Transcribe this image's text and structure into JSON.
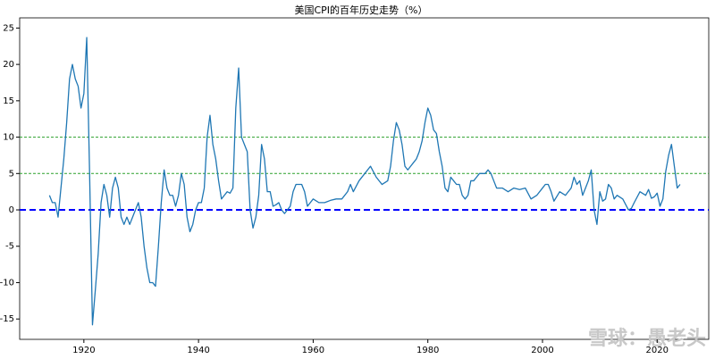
{
  "chart_data": {
    "type": "line",
    "title": "美国CPI的百年历史走势（%）",
    "watermark": "雪球：愚老头",
    "x": [
      1914.0,
      1914.5,
      1915.0,
      1915.5,
      1916.0,
      1916.5,
      1917.0,
      1917.5,
      1918.0,
      1918.5,
      1919.0,
      1919.5,
      1920.0,
      1920.5,
      1921.0,
      1921.5,
      1922.0,
      1922.5,
      1923.0,
      1923.5,
      1924.0,
      1924.5,
      1925.0,
      1925.5,
      1926.0,
      1926.5,
      1927.0,
      1927.5,
      1928.0,
      1928.5,
      1929.0,
      1929.5,
      1930.0,
      1930.5,
      1931.0,
      1931.5,
      1932.0,
      1932.5,
      1933.0,
      1933.5,
      1934.0,
      1934.5,
      1935.0,
      1935.5,
      1936.0,
      1936.5,
      1937.0,
      1937.5,
      1938.0,
      1938.5,
      1939.0,
      1939.5,
      1940.0,
      1940.5,
      1941.0,
      1941.5,
      1942.0,
      1942.5,
      1943.0,
      1943.5,
      1944.0,
      1944.5,
      1945.0,
      1945.5,
      1946.0,
      1946.5,
      1947.0,
      1947.5,
      1948.0,
      1948.5,
      1949.0,
      1949.5,
      1950.0,
      1950.5,
      1951.0,
      1951.5,
      1952.0,
      1952.5,
      1953.0,
      1953.5,
      1954.0,
      1954.5,
      1955.0,
      1955.5,
      1956.0,
      1956.5,
      1957.0,
      1957.5,
      1958.0,
      1958.5,
      1959.0,
      1959.5,
      1960.0,
      1961.0,
      1962.0,
      1963.0,
      1964.0,
      1965.0,
      1966.0,
      1966.5,
      1967.0,
      1968.0,
      1969.0,
      1970.0,
      1971.0,
      1972.0,
      1973.0,
      1973.5,
      1974.0,
      1974.5,
      1975.0,
      1975.5,
      1976.0,
      1976.5,
      1977.0,
      1977.5,
      1978.0,
      1978.5,
      1979.0,
      1979.5,
      1980.0,
      1980.5,
      1981.0,
      1981.5,
      1982.0,
      1982.5,
      1983.0,
      1983.5,
      1984.0,
      1984.5,
      1985.0,
      1985.5,
      1986.0,
      1986.5,
      1987.0,
      1987.5,
      1988.0,
      1988.5,
      1989.0,
      1989.5,
      1990.0,
      1990.5,
      1991.0,
      1991.5,
      1992.0,
      1993.0,
      1994.0,
      1995.0,
      1996.0,
      1997.0,
      1998.0,
      1999.0,
      2000.0,
      2000.5,
      2001.0,
      2001.5,
      2002.0,
      2003.0,
      2004.0,
      2005.0,
      2005.5,
      2006.0,
      2006.5,
      2007.0,
      2007.5,
      2008.0,
      2008.5,
      2009.0,
      2009.5,
      2010.0,
      2010.5,
      2011.0,
      2011.5,
      2012.0,
      2012.5,
      2013.0,
      2014.0,
      2015.0,
      2015.5,
      2016.0,
      2017.0,
      2018.0,
      2018.5,
      2019.0,
      2019.5,
      2020.0,
      2020.5,
      2021.0,
      2021.5,
      2022.0,
      2022.5,
      2023.0,
      2023.5,
      2024.0
    ],
    "series": [
      {
        "color": "#1f77b4",
        "values": [
          2.0,
          1.0,
          1.0,
          -1.0,
          3.0,
          7,
          12,
          18,
          20,
          18,
          17,
          14,
          16,
          23.7,
          5,
          -15.8,
          -11,
          -6,
          1,
          3.5,
          2,
          -1,
          3,
          4.5,
          3,
          -1,
          -2,
          -1,
          -2,
          -1,
          0,
          1,
          -1,
          -5,
          -8,
          -10,
          -10,
          -10.5,
          -5,
          1,
          5.5,
          3,
          2,
          2,
          0.5,
          2,
          5,
          3.5,
          -1,
          -3,
          -2,
          0,
          1,
          1,
          3,
          10,
          13,
          9,
          7,
          4,
          1.5,
          2,
          2.5,
          2.3,
          3,
          14,
          19.5,
          10,
          9,
          8,
          0,
          -2.5,
          -1,
          2,
          9,
          7,
          2.5,
          2.5,
          0.5,
          0.7,
          1,
          0,
          -0.5,
          0,
          0.5,
          2.5,
          3.5,
          3.5,
          3.5,
          2.5,
          0.5,
          1,
          1.5,
          1,
          1,
          1.3,
          1.5,
          1.5,
          2.5,
          3.5,
          2.5,
          4,
          5,
          6,
          4.5,
          3.5,
          4,
          6,
          9.5,
          12,
          11,
          9,
          6,
          5.5,
          6,
          6.5,
          7,
          8,
          9.5,
          12,
          14,
          13,
          11,
          10.5,
          8,
          6,
          3,
          2.5,
          4.5,
          4,
          3.5,
          3.5,
          2,
          1.5,
          2,
          4,
          4,
          4.5,
          5,
          5,
          5,
          5.5,
          5,
          4,
          3,
          3,
          2.5,
          3,
          2.8,
          3,
          1.5,
          2,
          3,
          3.5,
          3.5,
          2.5,
          1.2,
          2.5,
          2,
          3,
          4.5,
          3.5,
          4,
          2,
          3,
          4,
          5.5,
          0,
          -2,
          2.5,
          1.2,
          1.5,
          3.5,
          3,
          1.5,
          2,
          1.5,
          0,
          0.2,
          1,
          2.5,
          2,
          2.8,
          1.6,
          1.8,
          2.3,
          0.5,
          1.5,
          5.3,
          7.5,
          9,
          6,
          3,
          3.5
        ]
      }
    ],
    "hlines": [
      {
        "value": 10,
        "color": "#2ca02c",
        "style": "dashed"
      },
      {
        "value": 5,
        "color": "#2ca02c",
        "style": "dashed"
      },
      {
        "value": 0,
        "color": "#0000ff",
        "style": "dashed"
      }
    ],
    "xlim": [
      1908.8,
      2029.0
    ],
    "ylim": [
      -17.8,
      26.4
    ],
    "xticks": [
      1920,
      1940,
      1960,
      1980,
      2000,
      2020
    ],
    "yticks": [
      -15,
      -10,
      -5,
      0,
      5,
      10,
      15,
      20,
      25
    ],
    "grid": false
  }
}
